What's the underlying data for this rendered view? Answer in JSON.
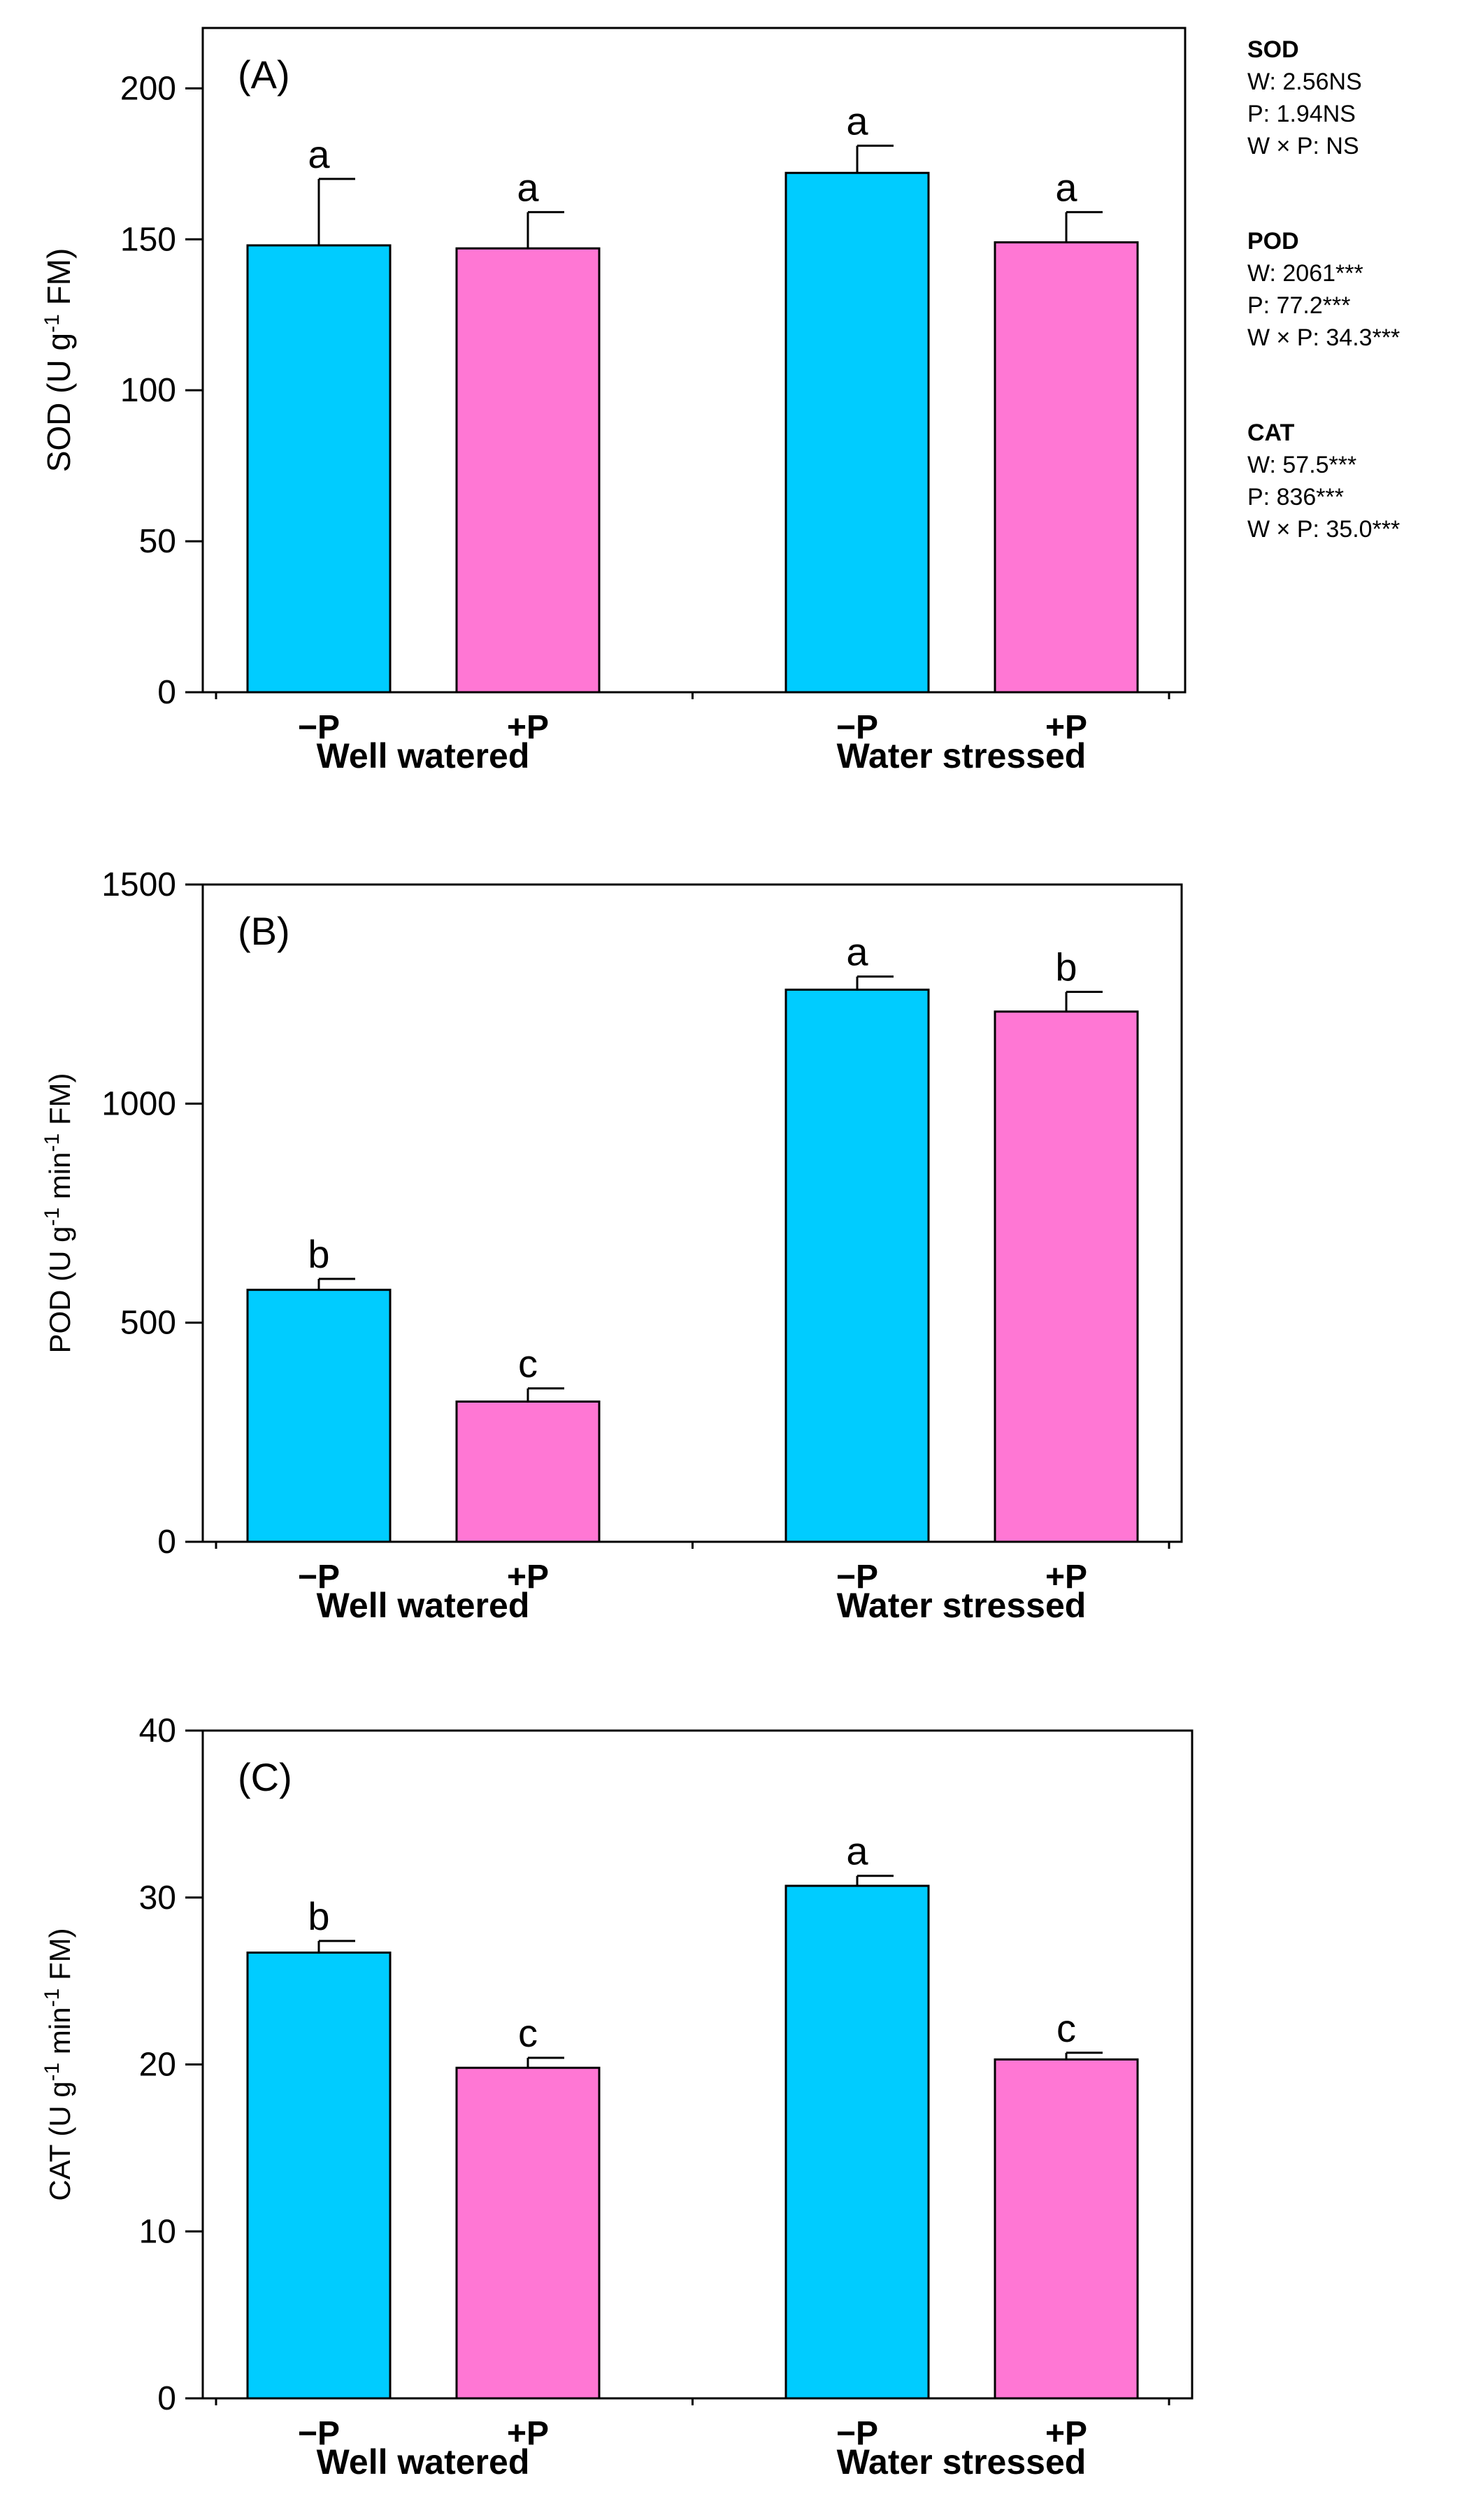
{
  "stats": [
    {
      "title": "SOD",
      "lines": [
        "W: 2.56NS",
        "P: 1.94NS",
        "W × P: NS"
      ]
    },
    {
      "title": "POD",
      "lines": [
        "W: 2061***",
        "P: 77.2***",
        "W × P: 34.3***"
      ]
    },
    {
      "title": "CAT",
      "lines": [
        "W: 57.5***",
        "P: 836***",
        "W × P: 35.0***"
      ]
    }
  ],
  "chart_data": [
    {
      "type": "bar",
      "panel_label": "(A)",
      "ylabel": "SOD  (U g-1 FM)",
      "ylabel_parts": {
        "pre": "SOD  (U g",
        "sup": "-1",
        "post": " FM)"
      },
      "ylim": [
        0,
        220
      ],
      "yticks": [
        0,
        50,
        100,
        150,
        200
      ],
      "groups": [
        "Well watered",
        "Water stressed"
      ],
      "categories": [
        "−P",
        "+P",
        "−P",
        "+P"
      ],
      "values": [
        148,
        147,
        172,
        149
      ],
      "errors": [
        22,
        12,
        9,
        10
      ],
      "letters": [
        "a",
        "a",
        "a",
        "a"
      ],
      "colors": [
        "#00CCFF",
        "#FF77D4",
        "#00CCFF",
        "#FF77D4"
      ]
    },
    {
      "type": "bar",
      "panel_label": "(B)",
      "ylabel": "POD (U g-1 min-1 FM)",
      "ylabel_parts": {
        "pre": "POD (U g",
        "sup": "-1",
        "mid": " min",
        "sup2": "-1",
        "post": " FM)"
      },
      "ylim": [
        0,
        1500
      ],
      "yticks": [
        0,
        500,
        1000,
        1500
      ],
      "groups": [
        "Well watered",
        "Water stressed"
      ],
      "categories": [
        "−P",
        "+P",
        "−P",
        "+P"
      ],
      "values": [
        575,
        320,
        1260,
        1210
      ],
      "errors": [
        25,
        30,
        30,
        45
      ],
      "letters": [
        "b",
        "c",
        "a",
        "b"
      ],
      "colors": [
        "#00CCFF",
        "#FF77D4",
        "#00CCFF",
        "#FF77D4"
      ]
    },
    {
      "type": "bar",
      "panel_label": "(C)",
      "ylabel": "CAT  (U g-1 min-1 FM)",
      "ylabel_parts": {
        "pre": "CAT  (U g",
        "sup": "-1",
        "mid": " min",
        "sup2": "-1",
        "post": " FM)"
      },
      "ylim": [
        0,
        40
      ],
      "yticks": [
        0,
        10,
        20,
        30,
        40
      ],
      "groups": [
        "Well watered",
        "Water stressed"
      ],
      "categories": [
        "−P",
        "+P",
        "−P",
        "+P"
      ],
      "values": [
        26.7,
        19.8,
        30.7,
        20.3
      ],
      "errors": [
        0.7,
        0.6,
        0.6,
        0.4
      ],
      "letters": [
        "b",
        "c",
        "a",
        "c"
      ],
      "colors": [
        "#00CCFF",
        "#FF77D4",
        "#00CCFF",
        "#FF77D4"
      ]
    }
  ]
}
